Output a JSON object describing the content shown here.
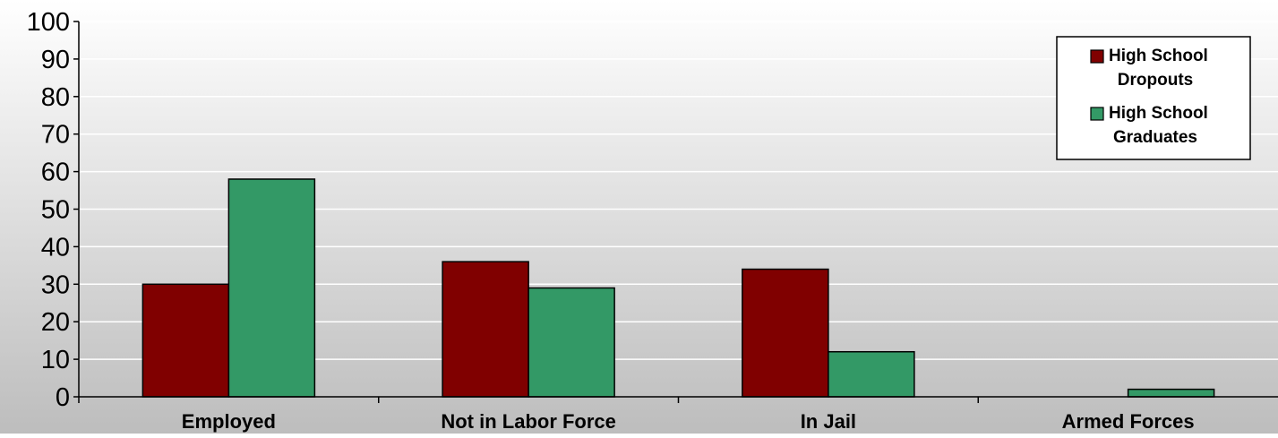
{
  "chart_data": {
    "type": "bar",
    "categories": [
      "Employed",
      "Not in Labor Force",
      "In Jail",
      "Armed Forces"
    ],
    "series": [
      {
        "name": "High School Dropouts",
        "legend_lines": [
          "High School",
          "Dropouts"
        ],
        "values": [
          30,
          36,
          34,
          0
        ],
        "color": "#800000"
      },
      {
        "name": "High School Graduates",
        "legend_lines": [
          "High School",
          "Graduates"
        ],
        "values": [
          58,
          29,
          12,
          2
        ],
        "color": "#339966"
      }
    ],
    "y_ticks": [
      "0",
      "10",
      "20",
      "30",
      "40",
      "50",
      "60",
      "70",
      "80",
      "90",
      "100"
    ],
    "ylim": [
      0,
      100
    ],
    "title": "",
    "xlabel": "",
    "ylabel": "",
    "grid": true,
    "legend_position": "top-right",
    "background_gradient": [
      "#ffffff",
      "#bdbdbd"
    ],
    "gridline_color": "#ffffff",
    "axis_color": "#000000"
  }
}
